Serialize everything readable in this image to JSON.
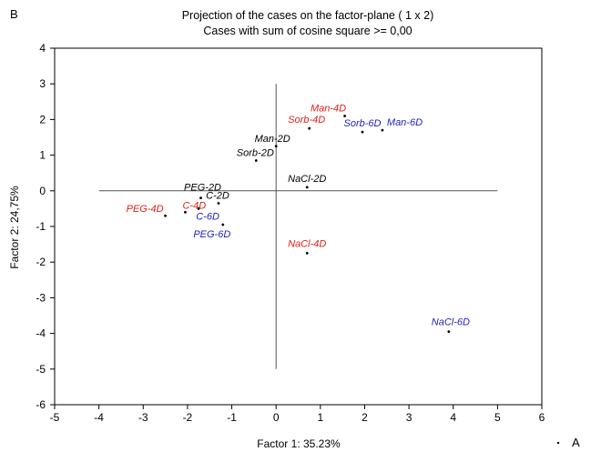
{
  "panel_label": "B",
  "corner_note": "A",
  "chart_data": {
    "type": "scatter",
    "title": "Projection of the cases on the factor-plane (  1 x   2)",
    "subtitle": "Cases with sum of cosine square >= 0,00",
    "xlabel": "Factor 1: 35.23%",
    "ylabel": "Factor 2: 24,75%",
    "xlim": [
      -5,
      6
    ],
    "ylim": [
      -6,
      4
    ],
    "xticks": [
      "-5",
      "-4",
      "-3",
      "-2",
      "-1",
      "0",
      "1",
      "2",
      "3",
      "4",
      "5",
      "6"
    ],
    "yticks": [
      "4",
      "3",
      "2",
      "1",
      "0",
      "-1",
      "-2",
      "-3",
      "-4",
      "-5",
      "-6"
    ],
    "grid": false,
    "crosshair": {
      "x_range": [
        -4,
        5
      ],
      "y_range": [
        -5,
        3
      ]
    },
    "colors": {
      "2D": "#000000",
      "4D": "#e0201b",
      "6D": "#1f1fbf"
    },
    "points": [
      {
        "label": "Man-4D",
        "x": 1.55,
        "y": 2.1,
        "group": "4D"
      },
      {
        "label": "Sorb-4D",
        "x": 0.75,
        "y": 1.75,
        "group": "4D"
      },
      {
        "label": "Sorb-6D",
        "x": 1.95,
        "y": 1.65,
        "group": "6D"
      },
      {
        "label": "Man-6D",
        "x": 2.4,
        "y": 1.7,
        "group": "6D"
      },
      {
        "label": "Man-2D",
        "x": 0.0,
        "y": 1.25,
        "group": "2D"
      },
      {
        "label": "Sorb-2D",
        "x": -0.45,
        "y": 0.85,
        "group": "2D"
      },
      {
        "label": "NaCl-2D",
        "x": 0.7,
        "y": 0.1,
        "group": "2D"
      },
      {
        "label": "PEG-2D",
        "x": -1.7,
        "y": -0.2,
        "group": "2D"
      },
      {
        "label": "C-2D",
        "x": -1.3,
        "y": -0.35,
        "group": "2D"
      },
      {
        "label": "C-4D",
        "x": -2.05,
        "y": -0.6,
        "group": "4D"
      },
      {
        "label": "PEG-4D",
        "x": -2.5,
        "y": -0.7,
        "group": "4D"
      },
      {
        "label": "C-6D",
        "x": -1.75,
        "y": -0.5,
        "group": "6D"
      },
      {
        "label": "PEG-6D",
        "x": -1.2,
        "y": -0.95,
        "group": "6D"
      },
      {
        "label": "NaCl-4D",
        "x": 0.7,
        "y": -1.75,
        "group": "4D"
      },
      {
        "label": "NaCl-6D",
        "x": 3.9,
        "y": -3.95,
        "group": "6D"
      }
    ]
  }
}
